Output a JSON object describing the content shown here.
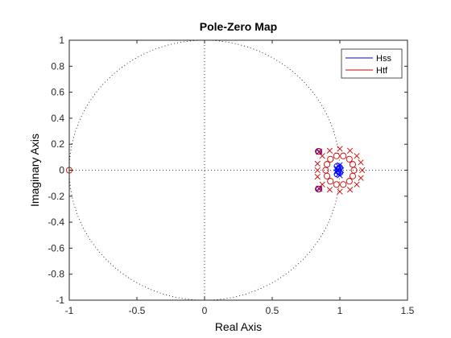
{
  "chart_data": {
    "type": "scatter",
    "title": "Pole-Zero Map",
    "xlabel": "Real Axis",
    "ylabel": "Imaginary Axis",
    "xlim": [
      -1,
      1.5
    ],
    "ylim": [
      -1,
      1
    ],
    "xticks": [
      -1,
      -0.5,
      0,
      0.5,
      1,
      1.5
    ],
    "xtick_labels": [
      "-1",
      "-0.5",
      "0",
      "0.5",
      "1",
      "1.5"
    ],
    "yticks": [
      -1,
      -0.8,
      -0.6,
      -0.4,
      -0.2,
      0,
      0.2,
      0.4,
      0.6,
      0.8,
      1
    ],
    "ytick_labels": [
      "-1",
      "-0.8",
      "-0.6",
      "-0.4",
      "-0.2",
      "0",
      "0.2",
      "0.4",
      "0.6",
      "0.8",
      "1"
    ],
    "grid": false,
    "unit_circle": true,
    "legend_position": "top-right",
    "series": [
      {
        "name": "Hss",
        "color": "#0000ff",
        "poles": [
          [
            0.99,
            0.03
          ],
          [
            0.99,
            -0.03
          ],
          [
            1.0,
            0.04
          ],
          [
            1.0,
            -0.04
          ],
          [
            0.975,
            0.015
          ],
          [
            0.975,
            -0.015
          ],
          [
            1.01,
            0.0
          ],
          [
            0.985,
            0.0
          ],
          [
            0.845,
            0.14
          ],
          [
            0.845,
            -0.14
          ]
        ],
        "zeros": [
          [
            0.99,
            0.01
          ],
          [
            0.99,
            -0.01
          ],
          [
            1.0,
            0.02
          ],
          [
            1.0,
            -0.02
          ],
          [
            0.98,
            0.03
          ],
          [
            0.98,
            -0.03
          ],
          [
            0.845,
            0.145
          ],
          [
            0.845,
            -0.145
          ]
        ]
      },
      {
        "name": "Htf",
        "color": "#cc0000",
        "poles": [
          [
            1.165,
            0.0
          ],
          [
            1.155,
            0.06
          ],
          [
            1.155,
            -0.06
          ],
          [
            1.125,
            0.11
          ],
          [
            1.125,
            -0.11
          ],
          [
            1.075,
            0.15
          ],
          [
            1.075,
            -0.15
          ],
          [
            1.0,
            0.165
          ],
          [
            1.0,
            -0.165
          ],
          [
            0.925,
            0.15
          ],
          [
            0.925,
            -0.15
          ],
          [
            0.87,
            0.11
          ],
          [
            0.87,
            -0.11
          ],
          [
            0.835,
            0.05
          ],
          [
            0.835,
            -0.05
          ],
          [
            0.835,
            0.0
          ],
          [
            0.85,
            0.145
          ],
          [
            0.85,
            -0.145
          ]
        ],
        "zeros": [
          [
            -1.0,
            0.0
          ],
          [
            1.105,
            0.0
          ],
          [
            1.095,
            0.045
          ],
          [
            1.095,
            -0.045
          ],
          [
            1.07,
            0.085
          ],
          [
            1.07,
            -0.085
          ],
          [
            1.025,
            0.11
          ],
          [
            1.025,
            -0.11
          ],
          [
            0.975,
            0.11
          ],
          [
            0.975,
            -0.11
          ],
          [
            0.93,
            0.085
          ],
          [
            0.93,
            -0.085
          ],
          [
            0.905,
            0.045
          ],
          [
            0.905,
            -0.045
          ],
          [
            0.895,
            0.0
          ],
          [
            0.84,
            0.145
          ],
          [
            0.84,
            -0.145
          ]
        ]
      }
    ]
  }
}
